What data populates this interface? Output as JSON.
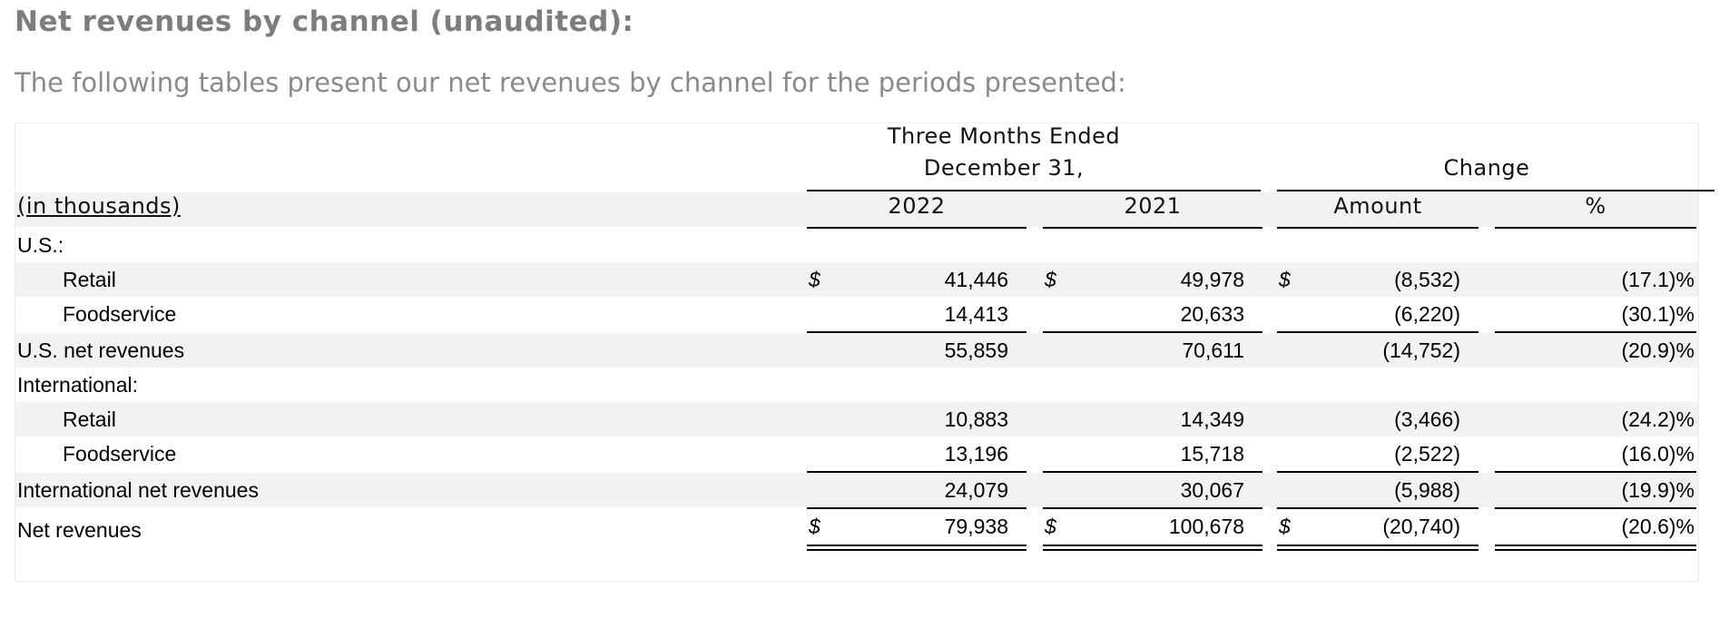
{
  "heading": "Net revenues by channel (unaudited):",
  "intro": "The following tables present our net revenues by channel for the periods presented:",
  "table": {
    "period_header_line1": "Three Months Ended",
    "period_header_line2": "December 31,",
    "change_header": "Change",
    "units_label": "(in thousands)",
    "col_2022": "2022",
    "col_2021": "2021",
    "col_amount": "Amount",
    "col_pct": "%",
    "currency_symbol": "$",
    "rows": [
      {
        "label": "U.S.:",
        "v2022": "",
        "v2021": "",
        "amount": "",
        "pct": ""
      },
      {
        "label": "Retail",
        "v2022": "41,446",
        "v2021": "49,978",
        "amount": "(8,532)",
        "pct": "(17.1)%"
      },
      {
        "label": "Foodservice",
        "v2022": "14,413",
        "v2021": "20,633",
        "amount": "(6,220)",
        "pct": "(30.1)%"
      },
      {
        "label": "U.S. net revenues",
        "v2022": "55,859",
        "v2021": "70,611",
        "amount": "(14,752)",
        "pct": "(20.9)%"
      },
      {
        "label": "International:",
        "v2022": "",
        "v2021": "",
        "amount": "",
        "pct": ""
      },
      {
        "label": "Retail",
        "v2022": "10,883",
        "v2021": "14,349",
        "amount": "(3,466)",
        "pct": "(24.2)%"
      },
      {
        "label": "Foodservice",
        "v2022": "13,196",
        "v2021": "15,718",
        "amount": "(2,522)",
        "pct": "(16.0)%"
      },
      {
        "label": "International net revenues",
        "v2022": "24,079",
        "v2021": "30,067",
        "amount": "(5,988)",
        "pct": "(19.9)%"
      },
      {
        "label": "Net revenues",
        "v2022": "79,938",
        "v2021": "100,678",
        "amount": "(20,740)",
        "pct": "(20.6)%"
      }
    ]
  }
}
